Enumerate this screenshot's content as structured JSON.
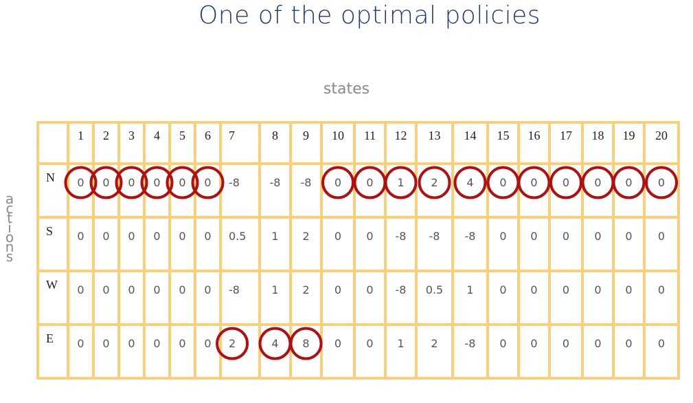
{
  "slide": {
    "title": "One of the optimal policies",
    "states_label": "states",
    "actions_label": [
      "a",
      "c",
      "t",
      "i",
      "o",
      "n",
      "s"
    ]
  },
  "table": {
    "states": [
      "1",
      "2",
      "3",
      "4",
      "5",
      "6",
      "7",
      "8",
      "9",
      "10",
      "11",
      "12",
      "13",
      "14",
      "15",
      "16",
      "17",
      "18",
      "19",
      "20"
    ],
    "rows": [
      {
        "action": "N",
        "values": [
          "0",
          "0",
          "0",
          "0",
          "0",
          "0",
          "-8",
          "-8",
          "-8",
          "0",
          "0",
          "1",
          "2",
          "4",
          "0",
          "0",
          "0",
          "0",
          "0",
          "0"
        ]
      },
      {
        "action": "S",
        "values": [
          "0",
          "0",
          "0",
          "0",
          "0",
          "0",
          "0.5",
          "1",
          "2",
          "0",
          "0",
          "-8",
          "-8",
          "-8",
          "0",
          "0",
          "0",
          "0",
          "0",
          "0"
        ]
      },
      {
        "action": "W",
        "values": [
          "0",
          "0",
          "0",
          "0",
          "0",
          "0",
          "-8",
          "1",
          "2",
          "0",
          "0",
          "-8",
          "0.5",
          "1",
          "0",
          "0",
          "0",
          "0",
          "0",
          "0"
        ]
      },
      {
        "action": "E",
        "values": [
          "0",
          "0",
          "0",
          "0",
          "0",
          "0",
          "2",
          "4",
          "8",
          "0",
          "0",
          "1",
          "2",
          "-8",
          "0",
          "0",
          "0",
          "0",
          "0",
          "0"
        ]
      }
    ],
    "optimal_choice": {
      "N": [
        1,
        2,
        3,
        4,
        5,
        6,
        10,
        11,
        12,
        13,
        14,
        15,
        16,
        17,
        18,
        19,
        20
      ],
      "E": [
        7,
        8,
        9
      ]
    },
    "circle_color": "#b01010",
    "grid_color": "#f9cf79"
  }
}
